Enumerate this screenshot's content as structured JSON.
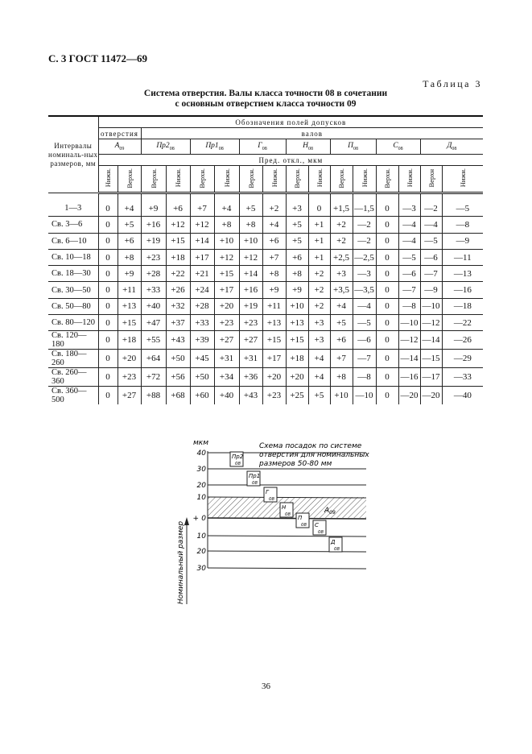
{
  "header": "С. 3 ГОСТ 11472—69",
  "table_label": "Таблица 3",
  "title_line1": "Система отверстия. Валы класса точности 08 в сочетании",
  "title_line2": "с основным отверстием класса точности 09",
  "table": {
    "col_intervals": "Интервалы номиналь-ных размеров, мм",
    "group_header": "Обозначения полей допусков",
    "hole_header": "отверстия",
    "shaft_header": "валов",
    "fields": [
      {
        "sym": "А",
        "sub": "09"
      },
      {
        "sym": "Пр2",
        "sub": "08"
      },
      {
        "sym": "Пр1",
        "sub": "08"
      },
      {
        "sym": "Г",
        "sub": "08"
      },
      {
        "sym": "Н",
        "sub": "08"
      },
      {
        "sym": "П",
        "sub": "08"
      },
      {
        "sym": "С",
        "sub": "08"
      },
      {
        "sym": "Д",
        "sub": "08"
      }
    ],
    "units_header": "Пред. откл., мкм",
    "sub_headers": [
      "Нижн.",
      "Верхн.",
      "Верхн.",
      "Нижн.",
      "Верхн.",
      "Нижн.",
      "Верхн.",
      "Нижн.",
      "Верхн.",
      "Нижн.",
      "Верхн.",
      "Нижн.",
      "Верхн.",
      "Нижн.",
      "Верхн",
      "Нижн."
    ],
    "rows": [
      {
        "interval": "1—3",
        "values": [
          "0",
          "+4",
          "+9",
          "+6",
          "+7",
          "+4",
          "+5",
          "+2",
          "+3",
          "0",
          "+1,5",
          "—1,5",
          "0",
          "—3",
          "—2",
          "—5"
        ]
      },
      {
        "interval": "Св. 3—6",
        "values": [
          "0",
          "+5",
          "+16",
          "+12",
          "+12",
          "+8",
          "+8",
          "+4",
          "+5",
          "+1",
          "+2",
          "—2",
          "0",
          "—4",
          "—4",
          "—8"
        ]
      },
      {
        "interval": "Св. 6—10",
        "values": [
          "0",
          "+6",
          "+19",
          "+15",
          "+14",
          "+10",
          "+10",
          "+6",
          "+5",
          "+1",
          "+2",
          "—2",
          "0",
          "—4",
          "—5",
          "—9"
        ]
      },
      {
        "interval": "Св. 10—18",
        "values": [
          "0",
          "+8",
          "+23",
          "+18",
          "+17",
          "+12",
          "+12",
          "+7",
          "+6",
          "+1",
          "+2,5",
          "—2,5",
          "0",
          "—5",
          "—6",
          "—11"
        ]
      },
      {
        "interval": "Св. 18—30",
        "values": [
          "0",
          "+9",
          "+28",
          "+22",
          "+21",
          "+15",
          "+14",
          "+8",
          "+8",
          "+2",
          "+3",
          "—3",
          "0",
          "—6",
          "—7",
          "—13"
        ]
      },
      {
        "interval": "Св. 30—50",
        "values": [
          "0",
          "+11",
          "+33",
          "+26",
          "+24",
          "+17",
          "+16",
          "+9",
          "+9",
          "+2",
          "+3,5",
          "—3,5",
          "0",
          "—7",
          "—9",
          "—16"
        ]
      },
      {
        "interval": "Св. 50—80",
        "values": [
          "0",
          "+13",
          "+40",
          "+32",
          "+28",
          "+20",
          "+19",
          "+11",
          "+10",
          "+2",
          "+4",
          "—4",
          "0",
          "—8",
          "—10",
          "—18"
        ]
      },
      {
        "interval": "Св. 80—120",
        "values": [
          "0",
          "+15",
          "+47",
          "+37",
          "+33",
          "+23",
          "+23",
          "+13",
          "+13",
          "+3",
          "+5",
          "—5",
          "0",
          "—10",
          "—12",
          "—22"
        ]
      },
      {
        "interval": "Св. 120—180",
        "values": [
          "0",
          "+18",
          "+55",
          "+43",
          "+39",
          "+27",
          "+27",
          "+15",
          "+15",
          "+3",
          "+6",
          "—6",
          "0",
          "—12",
          "—14",
          "—26"
        ]
      },
      {
        "interval": "Св. 180—260",
        "values": [
          "0",
          "+20",
          "+64",
          "+50",
          "+45",
          "+31",
          "+31",
          "+17",
          "+18",
          "+4",
          "+7",
          "—7",
          "0",
          "—14",
          "—15",
          "—29"
        ]
      },
      {
        "interval": "Св. 260—360",
        "values": [
          "0",
          "+23",
          "+72",
          "+56",
          "+50",
          "+34",
          "+36",
          "+20",
          "+20",
          "+4",
          "+8",
          "—8",
          "0",
          "—16",
          "—17",
          "—33"
        ]
      },
      {
        "interval": "Св. 360—500",
        "values": [
          "0",
          "+27",
          "+88",
          "+68",
          "+60",
          "+40",
          "+43",
          "+23",
          "+25",
          "+5",
          "+10",
          "—10",
          "0",
          "—20",
          "—20",
          "—40"
        ]
      }
    ]
  },
  "diagram": {
    "unit": "мкм",
    "caption": [
      "Схема посадок по системе",
      "отверстия для номинальных",
      "размеров 50-80 мм"
    ],
    "ticks": [
      "40",
      "30",
      "20",
      "10",
      "+",
      "0",
      "10",
      "20",
      "30"
    ],
    "axis_label": "Номинальный размер",
    "hole_label": {
      "sym": "А",
      "sub": "09"
    },
    "boxes": [
      {
        "sym": "Пр2",
        "sub": "08"
      },
      {
        "sym": "Пр1",
        "sub": "08"
      },
      {
        "sym": "Г",
        "sub": "08"
      },
      {
        "sym": "Н",
        "sub": "08"
      },
      {
        "sym": "П",
        "sub": "08"
      },
      {
        "sym": "С",
        "sub": "08"
      },
      {
        "sym": "Д",
        "sub": "08"
      }
    ]
  },
  "page_number": "36"
}
